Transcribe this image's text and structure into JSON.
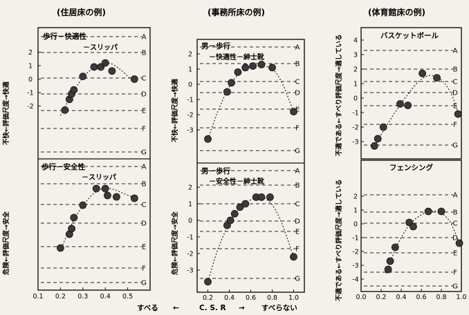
{
  "column_titles": {
    "residential": "(住居床の例)",
    "office": "(事務所床の例)",
    "gym": "(体育館床の例)"
  },
  "bottom_axis": {
    "left": "すべる",
    "center": "C. S. R",
    "right": "すべらない",
    "left_arrow": "←",
    "right_arrow": "→"
  },
  "grade_letters": [
    "A",
    "B",
    "C",
    "D",
    "E",
    "F",
    "G"
  ],
  "chart_data": [
    {
      "type": "scatter",
      "id": "res_comfort",
      "title_lines": [
        "歩行－快適性",
        "－スリッパ"
      ],
      "ylabel": "不快←評価尺度→快適",
      "yticks": [
        2,
        1,
        0,
        -1,
        -2
      ],
      "xlim": [
        0.1,
        0.6
      ],
      "x": [
        0.22,
        0.24,
        0.25,
        0.26,
        0.3,
        0.35,
        0.38,
        0.4,
        0.43,
        0.53
      ],
      "y": [
        -2.3,
        -1.5,
        -1.1,
        -0.8,
        0.2,
        0.9,
        0.9,
        1.2,
        0.6,
        0.0
      ],
      "curve_x": [
        0.2,
        0.24,
        0.3,
        0.35,
        0.4,
        0.45,
        0.52
      ],
      "curve_y": [
        -2.7,
        -1.4,
        0.2,
        0.9,
        1.3,
        1.0,
        -0.1
      ]
    },
    {
      "type": "scatter",
      "id": "res_safety",
      "title_lines": [
        "歩行－安全性",
        "－スリッパ"
      ],
      "ylabel": "危険←評価尺度→安全",
      "xlim": [
        0.1,
        0.6
      ],
      "x": [
        0.2,
        0.24,
        0.25,
        0.26,
        0.3,
        0.36,
        0.4,
        0.41,
        0.45,
        0.53
      ],
      "y": [
        -2.8,
        -1.8,
        -1.4,
        -0.6,
        0.3,
        1.5,
        1.5,
        1.0,
        0.9,
        0.8
      ],
      "curve_x": [
        0.2,
        0.25,
        0.3,
        0.36,
        0.42,
        0.5,
        0.55
      ],
      "curve_y": [
        -3.0,
        -1.0,
        0.3,
        1.4,
        1.6,
        1.0,
        0.8
      ]
    },
    {
      "type": "scatter",
      "id": "off_comfort",
      "title_lines": [
        "男－歩行",
        "－快適性－紳士靴"
      ],
      "ylabel": "不快←評価尺度→快適",
      "yticks": [
        2,
        1,
        0,
        -1,
        -2,
        -3
      ],
      "xlim": [
        0.1,
        1.1
      ],
      "x": [
        0.2,
        0.38,
        0.42,
        0.48,
        0.55,
        0.62,
        0.7,
        0.8,
        1.0
      ],
      "y": [
        -3.6,
        -0.5,
        0.1,
        0.8,
        1.1,
        1.2,
        1.3,
        1.1,
        -1.8
      ],
      "curve_x": [
        0.2,
        0.3,
        0.42,
        0.55,
        0.7,
        0.85,
        1.0
      ],
      "curve_y": [
        -3.6,
        -1.6,
        0.2,
        1.1,
        1.3,
        0.9,
        -1.8
      ]
    },
    {
      "type": "scatter",
      "id": "off_safety",
      "title_lines": [
        "男－歩行",
        "－安全性－紳士靴"
      ],
      "ylabel": "危険←評価尺度→安全",
      "yticks": [
        2,
        1,
        0,
        -1,
        -2,
        -3
      ],
      "xlim": [
        0.1,
        1.1
      ],
      "x": [
        0.2,
        0.38,
        0.41,
        0.45,
        0.5,
        0.55,
        0.65,
        0.7,
        0.78,
        1.0
      ],
      "y": [
        -3.7,
        -0.3,
        0.0,
        0.4,
        0.8,
        1.0,
        1.4,
        1.4,
        1.4,
        -2.2
      ],
      "curve_x": [
        0.2,
        0.3,
        0.45,
        0.6,
        0.72,
        0.85,
        1.0
      ],
      "curve_y": [
        -3.7,
        -1.5,
        0.5,
        1.3,
        1.5,
        0.6,
        -2.2
      ]
    },
    {
      "type": "scatter",
      "id": "gym_basket",
      "title_lines": [
        "バスケットボール"
      ],
      "ylabel": "不適である←すべり評価尺度→適している",
      "yticks": [
        4,
        3,
        2,
        1,
        0,
        -1,
        -2,
        -3
      ],
      "xlim": [
        0.1,
        1.0
      ],
      "x": [
        0.22,
        0.25,
        0.3,
        0.45,
        0.52,
        0.65,
        0.78,
        0.97
      ],
      "y": [
        -3.3,
        -2.8,
        -2.0,
        -0.4,
        -0.5,
        1.7,
        1.4,
        -1.1
      ],
      "curve_x": [
        0.22,
        0.35,
        0.5,
        0.65,
        0.78,
        0.9,
        0.98
      ],
      "curve_y": [
        -3.3,
        -1.6,
        0.1,
        1.5,
        1.6,
        0.6,
        -1.2
      ]
    },
    {
      "type": "scatter",
      "id": "gym_fencing",
      "title_lines": [
        "フェンシング"
      ],
      "ylabel": "不適である←すべり評価尺度→適している",
      "yticks": [
        2,
        1,
        0,
        -1,
        -2,
        -3,
        -4
      ],
      "xticks": [
        0.0,
        0.2,
        0.4,
        0.6,
        0.8,
        1.0
      ],
      "xlim": [
        0.0,
        1.0
      ],
      "x": [
        0.27,
        0.29,
        0.34,
        0.48,
        0.52,
        0.67,
        0.8,
        0.98
      ],
      "y": [
        -3.3,
        -2.7,
        -1.7,
        0.1,
        -0.2,
        0.9,
        0.9,
        -1.4
      ],
      "curve_x": [
        0.25,
        0.35,
        0.48,
        0.62,
        0.75,
        0.88,
        0.98
      ],
      "curve_y": [
        -3.6,
        -1.6,
        0.0,
        0.8,
        1.0,
        0.4,
        -1.4
      ]
    }
  ],
  "residential_xticks": [
    0.1,
    0.2,
    0.3,
    0.4,
    0.5
  ],
  "office_xticks": [
    0.2,
    0.4,
    0.6,
    0.8,
    1.0
  ]
}
